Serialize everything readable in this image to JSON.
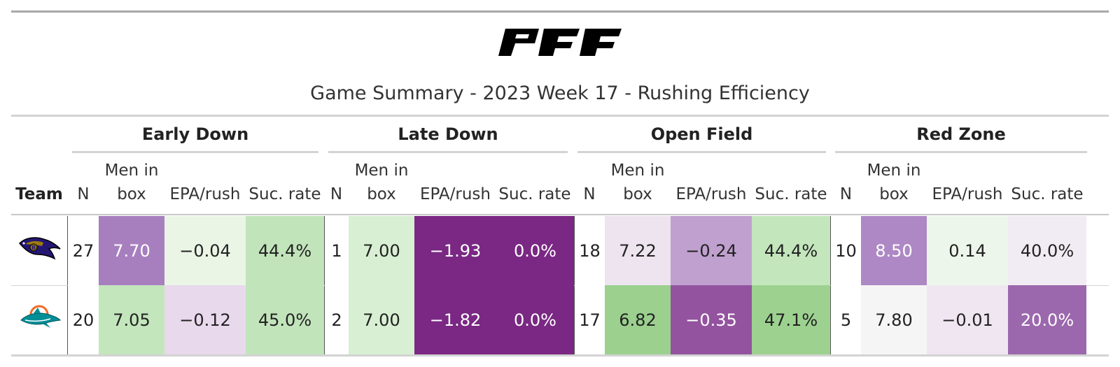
{
  "title": "Game Summary - 2023 Week 17 - Rushing Efficiency",
  "logo_text": "PFF",
  "groups": [
    "Early Down",
    "Late Down",
    "Open Field",
    "Red Zone"
  ],
  "columns": {
    "team": "Team",
    "n": "N",
    "men_in_box_line1": "Men in",
    "men_in_box_line2": "box",
    "epa": "EPA/rush",
    "suc": "Suc. rate"
  },
  "rows": [
    {
      "team_icon": "ravens-logo-icon",
      "values": [
        "27",
        "7.70",
        "−0.04",
        "44.4%",
        "1",
        "7.00",
        "−1.93",
        "0.0%",
        "18",
        "7.22",
        "−0.24",
        "44.4%",
        "10",
        "8.50",
        "0.14",
        "40.0%"
      ],
      "colors": [
        "#ffffff",
        "#a77fbf",
        "#eaf5e6",
        "#c2e4bb",
        "#ffffff",
        "#d8efd3",
        "#7a2883",
        "#7a2883",
        "#ffffff",
        "#ede4ef",
        "#bfa0cf",
        "#c3e6bc",
        "#ffffff",
        "#ad88c4",
        "#edf6ea",
        "#f1ebf3"
      ],
      "light": [
        false,
        true,
        false,
        false,
        false,
        false,
        true,
        true,
        false,
        false,
        false,
        false,
        false,
        true,
        false,
        false
      ]
    },
    {
      "team_icon": "dolphins-logo-icon",
      "values": [
        "20",
        "7.05",
        "−0.12",
        "45.0%",
        "2",
        "7.00",
        "−1.82",
        "0.0%",
        "17",
        "6.82",
        "−0.35",
        "47.1%",
        "5",
        "7.80",
        "−0.01",
        "20.0%"
      ],
      "colors": [
        "#ffffff",
        "#c3e6bc",
        "#e9d9ec",
        "#c2e4bb",
        "#ffffff",
        "#d8efd3",
        "#7a2883",
        "#7a2883",
        "#ffffff",
        "#9bd08f",
        "#93539f",
        "#9dd190",
        "#ffffff",
        "#f5f5f5",
        "#f0e6f2",
        "#9c68ad"
      ],
      "light": [
        false,
        false,
        false,
        false,
        false,
        false,
        true,
        true,
        false,
        false,
        true,
        false,
        false,
        false,
        false,
        true
      ]
    }
  ]
}
